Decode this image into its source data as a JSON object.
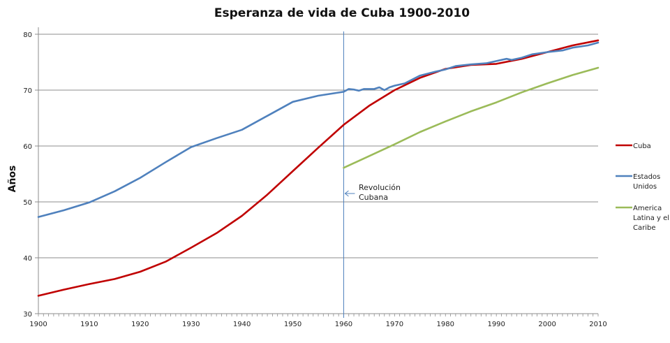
{
  "chart_data": {
    "type": "line",
    "title": "Esperanza de vida de Cuba 1900-2010",
    "xlabel": "",
    "ylabel": "Años",
    "xlim": [
      1900,
      2010
    ],
    "ylim": [
      30,
      80
    ],
    "xticks": [
      "1900",
      "1910",
      "1920",
      "1930",
      "1940",
      "1950",
      "1960",
      "1970",
      "1980",
      "1990",
      "2000",
      "2010"
    ],
    "yticks": [
      "30",
      "40",
      "50",
      "60",
      "70",
      "80"
    ],
    "grid": "horizontal",
    "legend_position": "right",
    "series": [
      {
        "name": "Cuba",
        "color": "#c00000",
        "x": [
          1900,
          1905,
          1910,
          1915,
          1920,
          1925,
          1930,
          1935,
          1940,
          1945,
          1950,
          1955,
          1960,
          1965,
          1970,
          1975,
          1980,
          1985,
          1990,
          1995,
          2000,
          2005,
          2010
        ],
        "y": [
          33.2,
          34.3,
          35.3,
          36.2,
          37.5,
          39.3,
          41.8,
          44.4,
          47.5,
          51.3,
          55.5,
          59.7,
          63.8,
          67.2,
          70.0,
          72.2,
          73.8,
          74.5,
          74.7,
          75.6,
          76.8,
          78.0,
          78.9
        ]
      },
      {
        "name": "Estados Unidos",
        "color": "#4f81bd",
        "x": [
          1900,
          1905,
          1910,
          1915,
          1920,
          1925,
          1930,
          1935,
          1940,
          1945,
          1950,
          1955,
          1960,
          1961,
          1962,
          1963,
          1964,
          1965,
          1966,
          1967,
          1968,
          1969,
          1970,
          1972,
          1975,
          1978,
          1980,
          1982,
          1985,
          1988,
          1990,
          1992,
          1993,
          1995,
          1997,
          2000,
          2003,
          2005,
          2008,
          2010
        ],
        "y": [
          47.3,
          48.5,
          49.9,
          51.9,
          54.3,
          57.1,
          59.8,
          61.4,
          62.9,
          65.4,
          67.9,
          69.0,
          69.7,
          70.2,
          70.1,
          69.9,
          70.2,
          70.2,
          70.2,
          70.5,
          70.0,
          70.5,
          70.8,
          71.2,
          72.6,
          73.3,
          73.7,
          74.3,
          74.6,
          74.8,
          75.2,
          75.6,
          75.4,
          75.8,
          76.4,
          76.8,
          77.1,
          77.6,
          78.0,
          78.5
        ]
      },
      {
        "name": "America Latina y el Caribe",
        "color": "#9bbb59",
        "x": [
          1960,
          1965,
          1970,
          1975,
          1980,
          1985,
          1990,
          1995,
          2000,
          2005,
          2010
        ],
        "y": [
          56.1,
          58.2,
          60.3,
          62.5,
          64.4,
          66.2,
          67.8,
          69.6,
          71.2,
          72.7,
          74.0
        ]
      }
    ],
    "annotations": [
      {
        "text": "Revolución Cubana",
        "x": 1960,
        "y": 51.5,
        "type": "vertical-line"
      }
    ]
  }
}
